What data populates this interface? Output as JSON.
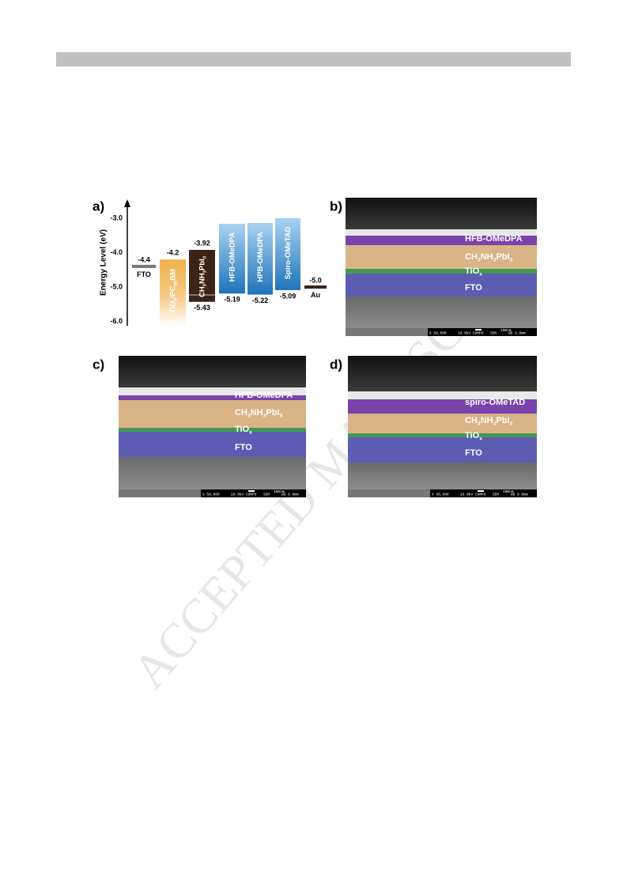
{
  "watermark": "ACCEPTED MANUSCRIPT",
  "figure": {
    "a": {
      "label": "a)",
      "y_axis_label": "Energy Level (eV)",
      "y_ticks": [
        "-3.0",
        "-4.0",
        "-5.0",
        "-6.0"
      ],
      "materials": [
        {
          "name": [
            "FTO"
          ],
          "level": "-4.4"
        },
        {
          "name": [
            "TiO",
            "x",
            "/PC",
            "60",
            "BM"
          ],
          "lumo": "-4.2"
        },
        {
          "name": [
            "CH",
            "3",
            "NH",
            "3",
            "PbI",
            "3"
          ],
          "lumo": "-3.92",
          "homo": "-5.43"
        },
        {
          "name": [
            "HFB-OMeDPA"
          ],
          "homo": "-5.19"
        },
        {
          "name": [
            "HPB-OMeDPA"
          ],
          "homo": "-5.22"
        },
        {
          "name": [
            "Spiro-OMeTAD"
          ],
          "homo": "-5.09"
        },
        {
          "name": [
            "Au"
          ],
          "level": "-5.0"
        }
      ]
    },
    "b": {
      "label": "b)",
      "layers": [
        [
          "HFB-OMeDPA"
        ],
        [
          "CH",
          "3",
          "NH",
          "3",
          "PbI",
          "3"
        ],
        [
          "TiO",
          "x"
        ],
        [
          "FTO"
        ]
      ],
      "info": [
        "X 50,000",
        "10.0kV COMPO",
        "SEM",
        "WD 8.0mm",
        "100nm"
      ]
    },
    "c": {
      "label": "c)",
      "layers": [
        [
          "HPB-OMeDPA"
        ],
        [
          "CH",
          "3",
          "NH",
          "3",
          "PbI",
          "3"
        ],
        [
          "TiO",
          "x"
        ],
        [
          "FTO"
        ]
      ],
      "info": [
        "X 50,000",
        "10.0kV COMPO",
        "SEM",
        "WD 8.0mm",
        "100nm"
      ]
    },
    "d": {
      "label": "d)",
      "layers": [
        [
          "spiro-OMeTAD"
        ],
        [
          "CH",
          "3",
          "NH",
          "3",
          "PbI",
          "3"
        ],
        [
          "TiO",
          "x"
        ],
        [
          "FTO"
        ]
      ],
      "info": [
        "X 50,000",
        "10.0kV COMPO",
        "SEM",
        "WD 8.0mm",
        "100nm"
      ]
    }
  }
}
